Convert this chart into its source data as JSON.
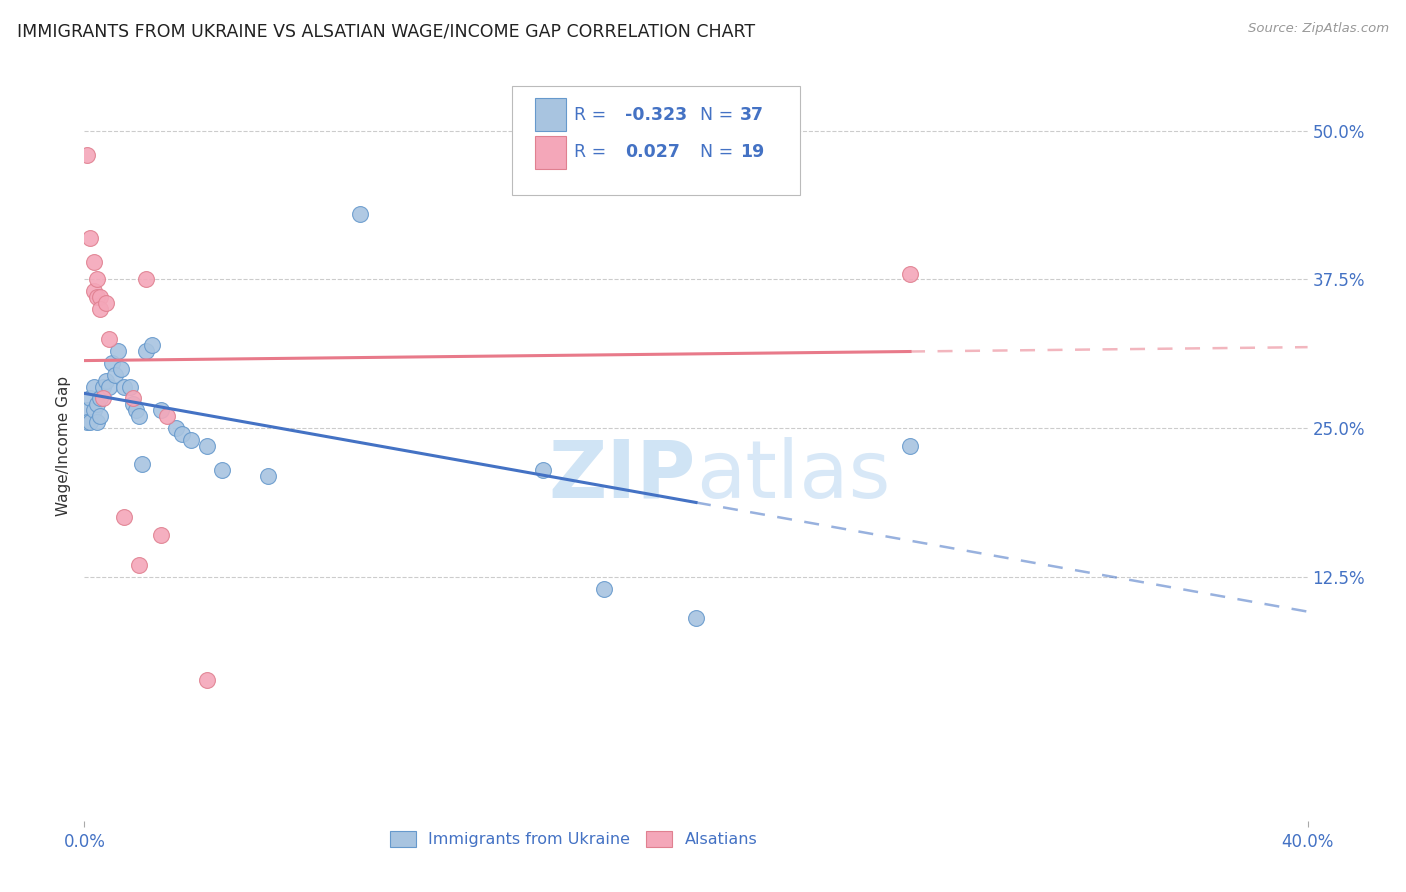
{
  "title": "IMMIGRANTS FROM UKRAINE VS ALSATIAN WAGE/INCOME GAP CORRELATION CHART",
  "source": "Source: ZipAtlas.com",
  "ylabel": "Wage/Income Gap",
  "ytick_values": [
    0.125,
    0.25,
    0.375,
    0.5
  ],
  "ytick_labels": [
    "12.5%",
    "25.0%",
    "37.5%",
    "50.0%"
  ],
  "xlim": [
    0.0,
    0.4
  ],
  "ylim": [
    -0.08,
    0.55
  ],
  "blue_R": "-0.323",
  "blue_N": "37",
  "pink_R": "0.027",
  "pink_N": "19",
  "blue_scatter_x": [
    0.001,
    0.001,
    0.002,
    0.002,
    0.003,
    0.003,
    0.004,
    0.004,
    0.005,
    0.005,
    0.006,
    0.007,
    0.008,
    0.009,
    0.01,
    0.011,
    0.012,
    0.013,
    0.015,
    0.016,
    0.017,
    0.018,
    0.019,
    0.02,
    0.022,
    0.025,
    0.03,
    0.032,
    0.035,
    0.04,
    0.045,
    0.06,
    0.09,
    0.15,
    0.17,
    0.2,
    0.27
  ],
  "blue_scatter_y": [
    0.265,
    0.255,
    0.275,
    0.255,
    0.285,
    0.265,
    0.27,
    0.255,
    0.275,
    0.26,
    0.285,
    0.29,
    0.285,
    0.305,
    0.295,
    0.315,
    0.3,
    0.285,
    0.285,
    0.27,
    0.265,
    0.26,
    0.22,
    0.315,
    0.32,
    0.265,
    0.25,
    0.245,
    0.24,
    0.235,
    0.215,
    0.21,
    0.43,
    0.215,
    0.115,
    0.09,
    0.235
  ],
  "pink_scatter_x": [
    0.001,
    0.002,
    0.003,
    0.003,
    0.004,
    0.004,
    0.005,
    0.005,
    0.006,
    0.007,
    0.008,
    0.013,
    0.016,
    0.018,
    0.02,
    0.025,
    0.027,
    0.04,
    0.27
  ],
  "pink_scatter_y": [
    0.48,
    0.41,
    0.39,
    0.365,
    0.375,
    0.36,
    0.36,
    0.35,
    0.275,
    0.355,
    0.325,
    0.175,
    0.275,
    0.135,
    0.375,
    0.16,
    0.26,
    0.038,
    0.38
  ],
  "blue_color": "#a8c4e0",
  "pink_color": "#f4a7b9",
  "blue_line_color": "#4472c4",
  "pink_line_color": "#e87a8a",
  "blue_marker_edge": "#6699cc",
  "pink_marker_edge": "#e08090",
  "text_color": "#4472c4",
  "axis_text_color": "#333333",
  "background_color": "#ffffff",
  "grid_color": "#cccccc",
  "watermark_color": "#d0e4f5"
}
